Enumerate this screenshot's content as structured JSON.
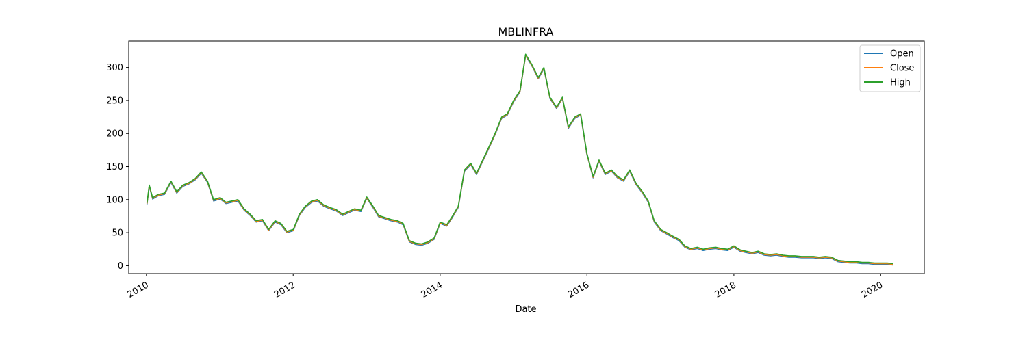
{
  "chart_data": {
    "type": "line",
    "title": "MBLINFRA",
    "xlabel": "Date",
    "ylabel": "",
    "x_ticks": [
      "2010",
      "2012",
      "2014",
      "2016",
      "2018",
      "2020"
    ],
    "y_ticks": [
      "0",
      "50",
      "100",
      "150",
      "200",
      "250",
      "300"
    ],
    "xlim": [
      "2009-10-05",
      "2020-08-05"
    ],
    "ylim": [
      -12,
      340
    ],
    "legend_position": "upper-right",
    "grid": false,
    "series_order": [
      "Open",
      "Close",
      "High"
    ],
    "series": [
      {
        "name": "Open",
        "color": "#1f77b4",
        "offset": -2.0
      },
      {
        "name": "Close",
        "color": "#ff7f0e",
        "offset": -1.0
      },
      {
        "name": "High",
        "color": "#2ca02c",
        "offset": 0.0
      }
    ],
    "x": [
      "2010-01-04",
      "2010-01-15",
      "2010-02-01",
      "2010-03-01",
      "2010-04-01",
      "2010-05-03",
      "2010-06-01",
      "2010-07-01",
      "2010-08-02",
      "2010-09-01",
      "2010-10-01",
      "2010-11-01",
      "2010-12-01",
      "2011-01-03",
      "2011-02-01",
      "2011-03-01",
      "2011-04-01",
      "2011-05-02",
      "2011-06-01",
      "2011-07-01",
      "2011-08-01",
      "2011-09-01",
      "2011-10-03",
      "2011-11-01",
      "2011-12-01",
      "2012-01-02",
      "2012-02-01",
      "2012-03-01",
      "2012-04-02",
      "2012-05-01",
      "2012-06-01",
      "2012-07-02",
      "2012-08-01",
      "2012-09-03",
      "2012-10-01",
      "2012-11-01",
      "2012-12-03",
      "2013-01-01",
      "2013-02-01",
      "2013-03-01",
      "2013-04-01",
      "2013-05-01",
      "2013-06-03",
      "2013-07-01",
      "2013-08-01",
      "2013-09-02",
      "2013-10-01",
      "2013-11-01",
      "2013-12-02",
      "2014-01-01",
      "2014-02-03",
      "2014-03-03",
      "2014-04-01",
      "2014-05-02",
      "2014-06-02",
      "2014-07-01",
      "2014-08-01",
      "2014-09-01",
      "2014-10-01",
      "2014-11-03",
      "2014-12-01",
      "2015-01-01",
      "2015-02-02",
      "2015-03-02",
      "2015-04-01",
      "2015-05-04",
      "2015-06-01",
      "2015-07-01",
      "2015-08-03",
      "2015-09-01",
      "2015-10-01",
      "2015-11-02",
      "2015-12-01",
      "2016-01-01",
      "2016-02-01",
      "2016-03-01",
      "2016-04-01",
      "2016-05-02",
      "2016-06-01",
      "2016-07-01",
      "2016-08-01",
      "2016-09-01",
      "2016-10-03",
      "2016-11-01",
      "2016-12-01",
      "2017-01-02",
      "2017-02-01",
      "2017-03-01",
      "2017-04-03",
      "2017-05-02",
      "2017-06-01",
      "2017-07-03",
      "2017-08-01",
      "2017-09-01",
      "2017-10-03",
      "2017-11-01",
      "2017-12-01",
      "2018-01-01",
      "2018-02-01",
      "2018-03-01",
      "2018-04-02",
      "2018-05-02",
      "2018-06-01",
      "2018-07-02",
      "2018-08-01",
      "2018-09-03",
      "2018-10-01",
      "2018-11-01",
      "2018-12-03",
      "2019-01-01",
      "2019-02-01",
      "2019-03-01",
      "2019-04-01",
      "2019-05-02",
      "2019-06-03",
      "2019-07-01",
      "2019-08-01",
      "2019-09-03",
      "2019-10-01",
      "2019-11-01",
      "2019-12-02",
      "2020-01-01",
      "2020-02-03",
      "2020-03-02"
    ],
    "y": [
      95,
      122,
      103,
      108,
      110,
      128,
      112,
      122,
      126,
      132,
      142,
      128,
      100,
      103,
      96,
      98,
      100,
      86,
      78,
      68,
      70,
      55,
      68,
      64,
      52,
      55,
      78,
      90,
      98,
      100,
      92,
      88,
      85,
      78,
      82,
      86,
      84,
      104,
      90,
      76,
      73,
      70,
      68,
      64,
      38,
      34,
      33,
      36,
      42,
      66,
      62,
      75,
      90,
      145,
      155,
      140,
      160,
      180,
      200,
      225,
      230,
      250,
      265,
      320,
      305,
      285,
      300,
      255,
      240,
      255,
      210,
      225,
      230,
      170,
      135,
      160,
      140,
      145,
      135,
      130,
      145,
      125,
      112,
      98,
      68,
      55,
      50,
      45,
      40,
      30,
      26,
      28,
      25,
      27,
      28,
      26,
      25,
      30,
      24,
      22,
      20,
      22,
      18,
      17,
      18,
      16,
      15,
      15,
      14,
      14,
      14,
      13,
      14,
      13,
      8,
      7,
      6,
      6,
      5,
      5,
      4,
      4,
      4,
      3
    ]
  }
}
